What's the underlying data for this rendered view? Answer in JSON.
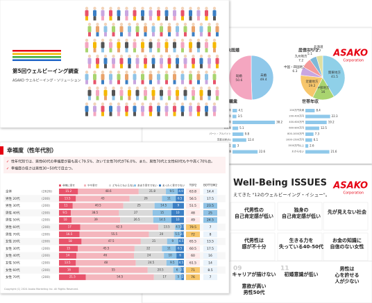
{
  "cover": {
    "title": "第5回ウェルビーイング調査",
    "subtitle": "ASAKO ウェルビーイング・ソリューション"
  },
  "demographics": {
    "logo": "ASAKO",
    "logo_sub": "Corporation",
    "pies": [
      {
        "title": "未既婚",
        "labels": [
          "未婚",
          "既婚"
        ],
        "values": [
          49.4,
          50.6
        ],
        "colors": [
          "#8fc8ea",
          "#f4a6c0"
        ]
      },
      {
        "title": "居住エリア",
        "labels": [
          "関東地方",
          "中部地方",
          "近畿地方",
          "中国・四国地方",
          "九州地方",
          "東北地方",
          "北海道"
        ],
        "values": [
          41.5,
          16.0,
          19.2,
          6.3,
          7.2,
          5.1,
          4.7
        ],
        "colors": [
          "#8fd0e8",
          "#a9d46f",
          "#f7c66b",
          "#c9a6e0",
          "#f49a9a",
          "#7fb8d8",
          "#e0e0a0"
        ]
      }
    ],
    "bars": [
      {
        "title": "職業",
        "categories": [
          "経営者・役員",
          "公務員",
          "会社員",
          "自営業",
          "パート・アルバイト",
          "専業主婦(夫)",
          "学生",
          "無職"
        ],
        "values": [
          4.1,
          3.5,
          38.2,
          5.1,
          9.8,
          12.4,
          3.0,
          22.6
        ],
        "color": "#8fc8ea"
      },
      {
        "title": "世帯年収",
        "categories": [
          "200万円未満",
          "200-400万円",
          "400-600万円",
          "600-800万円",
          "800-1000万円",
          "1000-1500万円",
          "1500万円以上",
          "わからない"
        ],
        "values": [
          8.4,
          22.3,
          19.2,
          12.5,
          7.3,
          6.1,
          2.6,
          21.6
        ],
        "color": "#8fc8ea"
      }
    ]
  },
  "happiness": {
    "title": "幸福度（性年代別）",
    "bullets": [
      "性年代別では、男性60代の幸福度が最も高く79.5%、次いで女性70代が76.0%、また、男性70代と女性60代もやや高く70%台。",
      "幸福度の低さは男性30~50代で目立つ。"
    ],
    "columns": [
      "非常に幸せ",
      "やや幸せ",
      "どちらともいえない",
      "あまり幸せでない",
      "まったく幸せでない"
    ],
    "colors": [
      "#e8536b",
      "#f4b6bd",
      "#d9d9d9",
      "#8fc3e6",
      "#3b7fc4"
    ],
    "summary_columns": [
      "TOP2",
      "BOTTOM2"
    ],
    "rows": [
      {
        "label": "全体",
        "n": "(2626)",
        "values": [
          15.2,
          48.6,
          21.8,
          9.5,
          4.9
        ],
        "top2": 63.8,
        "bottom2": 14.4
      },
      {
        "label": "男性 20代",
        "n": "(200)",
        "values": [
          13.5,
          43.0,
          26.0,
          11.0,
          6.5
        ],
        "top2": 56.5,
        "bottom2": 17.5
      },
      {
        "label": "男性 30代",
        "n": "(200)",
        "values": [
          11.0,
          40.5,
          25.0,
          14.5,
          9.0
        ],
        "top2": 51.5,
        "bottom2": 23.5
      },
      {
        "label": "男性 40代",
        "n": "(200)",
        "values": [
          9.5,
          38.5,
          27.0,
          15.0,
          10.0
        ],
        "top2": 48.0,
        "bottom2": 25.0
      },
      {
        "label": "男性 50代",
        "n": "(200)",
        "values": [
          10.0,
          39.0,
          26.5,
          14.5,
          10.0
        ],
        "top2": 49.0,
        "bottom2": 24.5
      },
      {
        "label": "男性 60代",
        "n": "(200)",
        "values": [
          17.0,
          62.5,
          13.5,
          4.5,
          2.5
        ],
        "top2": 79.5,
        "bottom2": 7.0
      },
      {
        "label": "男性 70代",
        "n": "(200)",
        "values": [
          16.5,
          55.5,
          20.0,
          5.5,
          2.5
        ],
        "top2": 72.0,
        "bottom2": 8.0
      },
      {
        "label": "女性 20代",
        "n": "(200)",
        "values": [
          18.0,
          47.5,
          21.0,
          9.0,
          4.5
        ],
        "top2": 65.5,
        "bottom2": 13.5
      },
      {
        "label": "女性 30代",
        "n": "(200)",
        "values": [
          15.0,
          45.5,
          22.0,
          11.0,
          6.5
        ],
        "top2": 60.5,
        "bottom2": 17.5
      },
      {
        "label": "女性 40代",
        "n": "(200)",
        "values": [
          14.0,
          46.0,
          24.0,
          10.0,
          6.0
        ],
        "top2": 60.0,
        "bottom2": 16.0
      },
      {
        "label": "女性 50代",
        "n": "(200)",
        "values": [
          13.5,
          48.0,
          24.5,
          9.5,
          4.5
        ],
        "top2": 61.5,
        "bottom2": 14.0
      },
      {
        "label": "女性 60代",
        "n": "(200)",
        "values": [
          16.0,
          55.0,
          20.5,
          6.0,
          2.5
        ],
        "top2": 71.0,
        "bottom2": 8.5
      },
      {
        "label": "女性 70代",
        "n": "(200)",
        "values": [
          21.5,
          54.5,
          17.0,
          5.0,
          2.0
        ],
        "top2": 76.0,
        "bottom2": 7.0
      }
    ],
    "footer": "Copyright (C) 2024 Asako Marketing Inc. All Rights Reserved."
  },
  "issues": {
    "title": "Well-Being ISSUES",
    "subtitle": "えてきた \"12のウェルビーイング・イシュー\"。",
    "logo": "ASAKO",
    "logo_sub": "Corporation",
    "items": [
      {
        "lines": [
          "代男性の",
          "自己肯定感が低い"
        ]
      },
      {
        "lines": [
          "独身の",
          "自己肯定感が低い"
        ]
      },
      {
        "lines": [
          "先が見えない社会"
        ]
      },
      {
        "lines": [
          "代男性は",
          "感が不十分"
        ]
      },
      {
        "lines": [
          "生きる力を",
          "失っている40-50代"
        ]
      },
      {
        "lines": [
          "お金の知識に",
          "自信のない女性"
        ]
      },
      {
        "number": "09",
        "lines": [
          "キャリアが描けない"
        ]
      },
      {
        "lines": [
          "意欲が高い",
          "男性50代"
        ]
      },
      {
        "number": "11",
        "lines": [
          "初婚意識が低い"
        ]
      },
      {
        "lines": [
          "男性は",
          "心を許せる",
          "人が少ない"
        ]
      }
    ]
  }
}
